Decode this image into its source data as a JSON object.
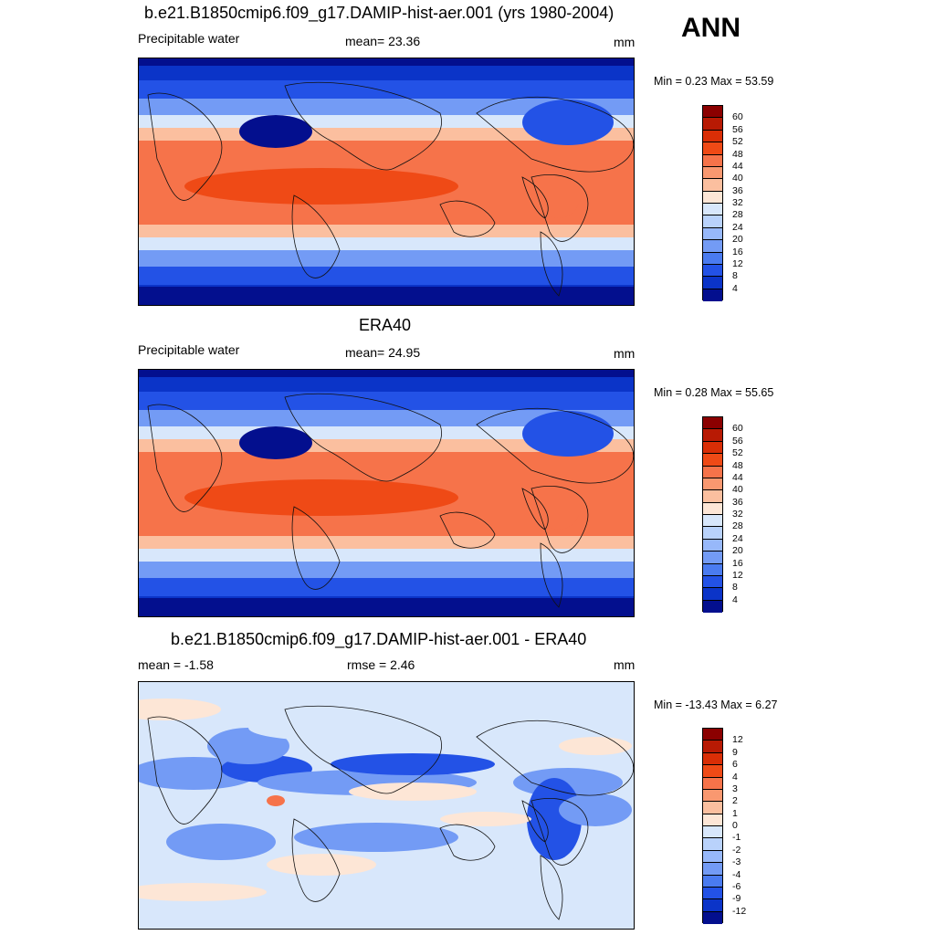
{
  "panels": [
    {
      "title": "b.e21.B1850cmip6.f09_g17.DAMIP-hist-aer.001 (yrs 1980-2004)",
      "left_label": "Precipitable water",
      "center_label": "mean=  23.36",
      "right_label": "mm",
      "minmax": "Min =   0.23 Max =  53.59",
      "colorbar_labels": [
        "60",
        "56",
        "52",
        "48",
        "44",
        "40",
        "36",
        "32",
        "28",
        "24",
        "20",
        "16",
        "12",
        "8",
        "4"
      ],
      "colorbar_colors": [
        "#8b0000",
        "#b81a04",
        "#d92e06",
        "#ef4a16",
        "#f6734a",
        "#f99870",
        "#fbbf9f",
        "#fde6d6",
        "#d8e7fb",
        "#b9d2fb",
        "#97b8fa",
        "#739bf5",
        "#4a7bf0",
        "#2352e6",
        "#0b34c8",
        "#030f8e"
      ]
    },
    {
      "title": "ERA40",
      "left_label": "Precipitable water",
      "center_label": "mean=  24.95",
      "right_label": "mm",
      "minmax": "Min =   0.28 Max =  55.65",
      "colorbar_labels": [
        "60",
        "56",
        "52",
        "48",
        "44",
        "40",
        "36",
        "32",
        "28",
        "24",
        "20",
        "16",
        "12",
        "8",
        "4"
      ],
      "colorbar_colors": [
        "#8b0000",
        "#b81a04",
        "#d92e06",
        "#ef4a16",
        "#f6734a",
        "#f99870",
        "#fbbf9f",
        "#fde6d6",
        "#d8e7fb",
        "#b9d2fb",
        "#97b8fa",
        "#739bf5",
        "#4a7bf0",
        "#2352e6",
        "#0b34c8",
        "#030f8e"
      ]
    },
    {
      "title": "b.e21.B1850cmip6.f09_g17.DAMIP-hist-aer.001 - ERA40",
      "left_label": "mean =  -1.58",
      "center_label": "rmse =   2.46",
      "right_label": "mm",
      "minmax": "Min = -13.43 Max =   6.27",
      "colorbar_labels": [
        "12",
        "9",
        "6",
        "4",
        "3",
        "2",
        "1",
        "0",
        "-1",
        "-2",
        "-3",
        "-4",
        "-6",
        "-9",
        "-12"
      ],
      "colorbar_colors": [
        "#8b0000",
        "#b81a04",
        "#d92e06",
        "#ef4a16",
        "#f6734a",
        "#f99870",
        "#fbbf9f",
        "#fde6d6",
        "#d8e7fb",
        "#b9d2fb",
        "#97b8fa",
        "#739bf5",
        "#4a7bf0",
        "#2352e6",
        "#0b34c8",
        "#030f8e"
      ]
    }
  ],
  "season": "ANN",
  "map_colors": {
    "deep": "#030f8e",
    "dark": "#0b34c8",
    "mid": "#2352e6",
    "light": "#739bf5",
    "pale": "#d8e7fb",
    "warm1": "#fbbf9f",
    "warm2": "#f6734a",
    "warm3": "#ef4a16",
    "diff_bg": "#d8e7fb",
    "diff_pos": "#fde6d6"
  }
}
